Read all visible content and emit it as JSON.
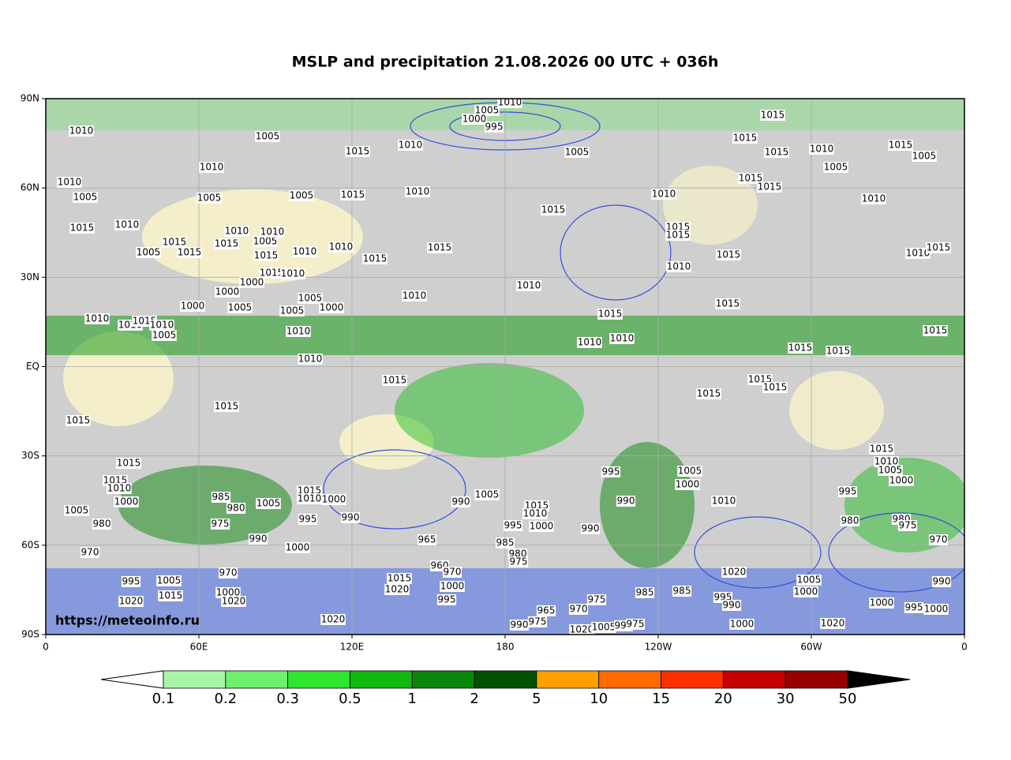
{
  "title": "MSLP and precipitation 21.08.2026 00 UTC + 036h",
  "source": "https://meteoinfo.ru",
  "map": {
    "lat_ticks": [
      "90N",
      "60N",
      "30N",
      "EQ",
      "30S",
      "60S",
      "90S"
    ],
    "lon_ticks": [
      "0",
      "60E",
      "120E",
      "180",
      "120W",
      "60W",
      "0"
    ],
    "grid": true,
    "isobar_labels": [
      1010,
      1005,
      1005,
      1010,
      1000,
      995,
      1015,
      1010,
      1005,
      1015,
      1015,
      1015,
      1010,
      1015,
      1005,
      1005,
      1010,
      1005,
      1010,
      1005,
      1005,
      1015,
      1010,
      1015,
      1010,
      1015,
      1015,
      1010,
      1015,
      1010,
      1005,
      1015,
      1015,
      1015,
      1010,
      1005,
      1010,
      1015,
      1010,
      1010,
      1015,
      1015,
      1015,
      1015,
      1015,
      1010,
      1015,
      1015,
      1010,
      1000,
      1000,
      1005,
      1005,
      1005,
      1000,
      1010,
      1010,
      1010,
      1015,
      1015,
      1000,
      1010,
      1010,
      1015,
      1010,
      1005,
      1010,
      1010,
      1010,
      1015,
      1015,
      1015,
      1010,
      1015,
      1015,
      1015,
      1015,
      1015,
      1015,
      1015,
      1010,
      1005,
      1000,
      1015,
      1015,
      1010,
      1000,
      1005,
      980,
      970,
      985,
      980,
      975,
      1005,
      1015,
      1010,
      1000,
      995,
      990,
      990,
      1000,
      990,
      1005,
      1015,
      1010,
      995,
      1000,
      965,
      985,
      980,
      975,
      995,
      1005,
      1000,
      990,
      990,
      1010,
      995,
      980,
      980,
      975,
      970,
      1020,
      1005,
      1000,
      990,
      1000,
      995,
      1000,
      1005,
      995,
      1015,
      1020,
      1000,
      1020,
      970,
      1015,
      1020,
      960,
      970,
      1000,
      995,
      1020,
      965,
      970,
      975,
      985,
      985,
      995,
      990,
      1000,
      1020,
      990,
      975,
      1020,
      1005,
      995,
      975
    ]
  },
  "colorbar": {
    "ticks": [
      0.1,
      0.2,
      0.3,
      0.5,
      1,
      2,
      5,
      10,
      15,
      20,
      30,
      50
    ],
    "colors": [
      "#a6f5a6",
      "#6eef6e",
      "#2fe52f",
      "#10b810",
      "#0a870a",
      "#005200",
      "#ffa000",
      "#ff6a00",
      "#ff3000",
      "#c40000",
      "#960000"
    ],
    "under_color": "#ffffff",
    "over_color": "#000000"
  }
}
